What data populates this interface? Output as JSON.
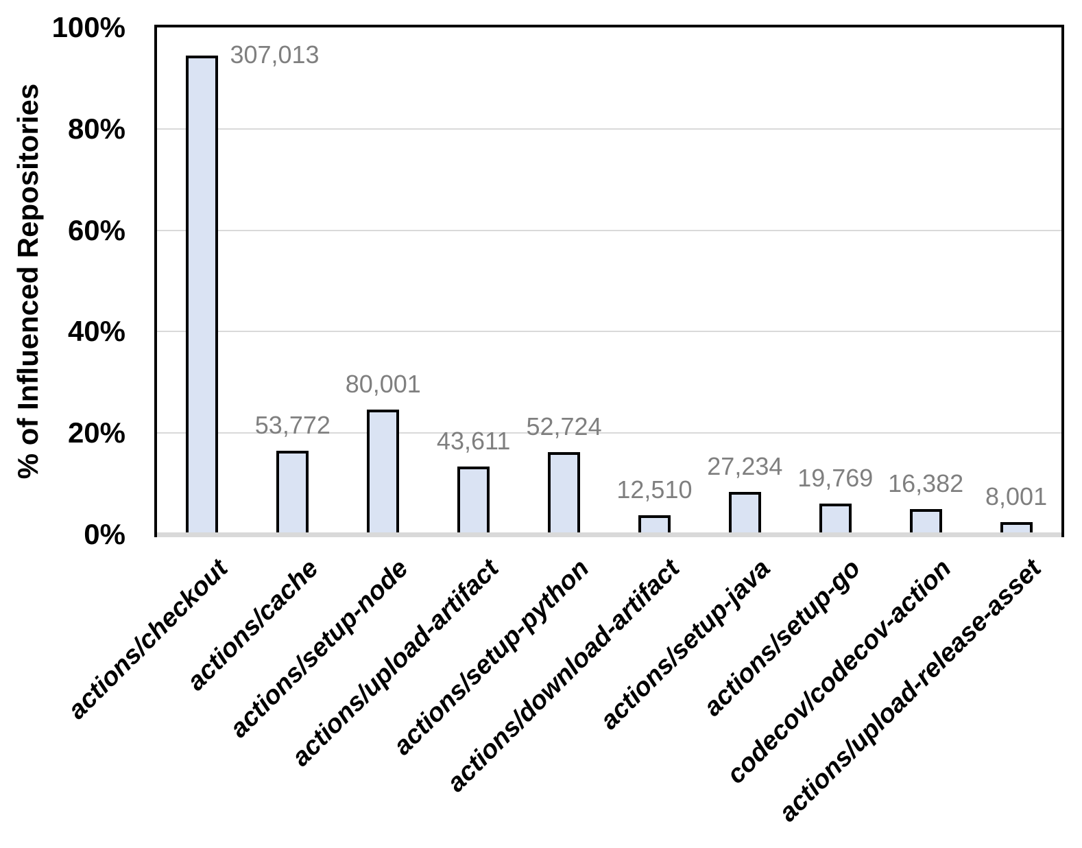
{
  "chart_data": {
    "type": "bar",
    "title": "",
    "xlabel": "",
    "ylabel": "% of Influenced Repositories",
    "ylim": [
      0,
      100
    ],
    "ytick_labels": [
      "0%",
      "20%",
      "40%",
      "60%",
      "80%",
      "100%"
    ],
    "grid": "horizontal",
    "legend": "none",
    "categories": [
      "actions/checkout",
      "actions/cache",
      "actions/setup-node",
      "actions/upload-artifact",
      "actions/setup-python",
      "actions/download-artifact",
      "actions/setup-java",
      "actions/setup-go",
      "codecov/codecov-action",
      "actions/upload-release-asset"
    ],
    "values": [
      307013,
      53772,
      80001,
      43611,
      52724,
      12510,
      27234,
      19769,
      16382,
      8001
    ],
    "value_labels": [
      "307,013",
      "53,772",
      "80,001",
      "43,611",
      "52,724",
      "12,510",
      "27,234",
      "19,769",
      "16,382",
      "8,001"
    ],
    "percents": [
      94.5,
      16.55,
      24.62,
      13.42,
      16.23,
      3.85,
      8.38,
      6.08,
      5.04,
      2.46
    ],
    "value_label_positions": [
      "right",
      "above",
      "above",
      "above",
      "above",
      "above",
      "above",
      "above",
      "above",
      "above"
    ],
    "colors": {
      "bar_fill": "#dae3f3",
      "bar_border": "#000000",
      "plot_border": "#000000",
      "gridline": "#d9d9d9",
      "axis_line": "#d9d9d9",
      "value_label": "#7f7f7f",
      "text": "#000000"
    }
  }
}
